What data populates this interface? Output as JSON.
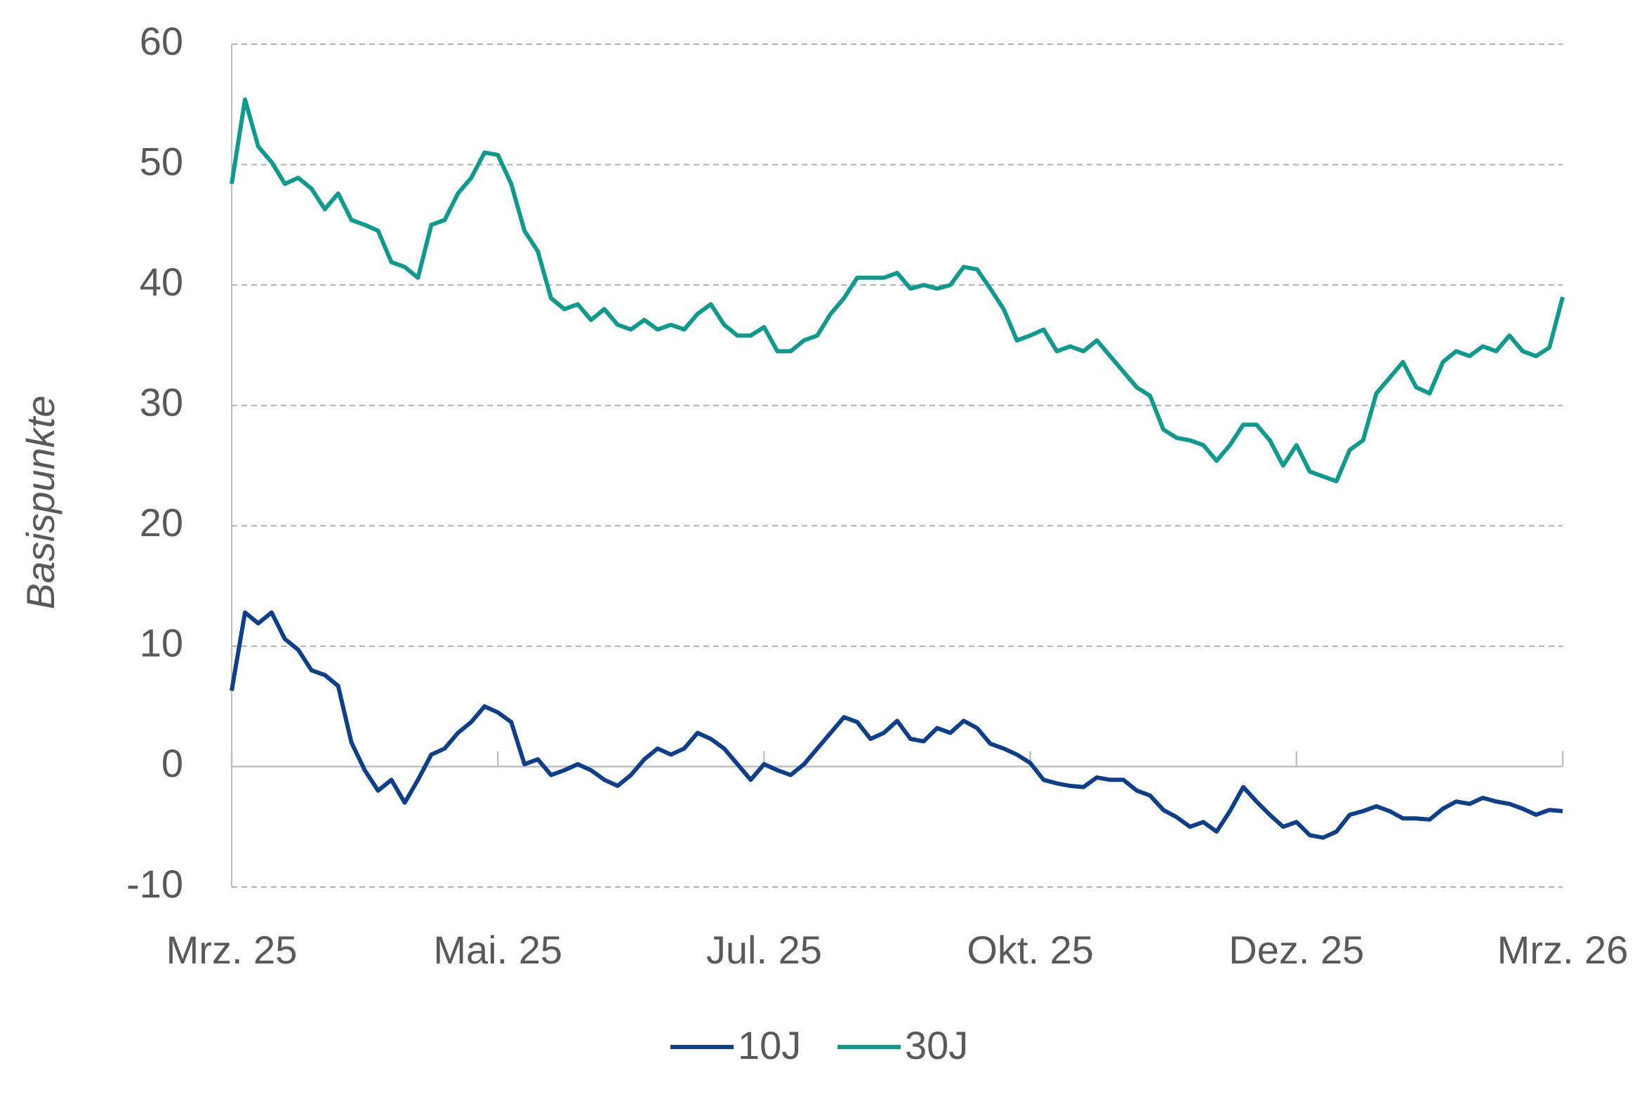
{
  "chart_data": {
    "type": "line",
    "ylabel": "Basispunkte",
    "categories": [
      "Mrz. 25",
      null,
      null,
      null,
      null,
      null,
      null,
      null,
      null,
      null,
      null,
      null,
      null,
      null,
      null,
      null,
      null,
      null,
      null,
      null,
      "Mai. 25",
      null,
      null,
      null,
      null,
      null,
      null,
      null,
      null,
      null,
      null,
      null,
      null,
      null,
      null,
      null,
      null,
      null,
      null,
      null,
      "Jul. 25",
      null,
      null,
      null,
      null,
      null,
      null,
      null,
      null,
      null,
      null,
      null,
      null,
      null,
      null,
      null,
      null,
      null,
      null,
      null,
      "Okt. 25",
      null,
      null,
      null,
      null,
      null,
      null,
      null,
      null,
      null,
      null,
      null,
      null,
      null,
      null,
      null,
      null,
      null,
      null,
      null,
      "Dez. 25",
      null,
      null,
      null,
      null,
      null,
      null,
      null,
      null,
      null,
      null,
      null,
      null,
      null,
      null,
      null,
      null,
      null,
      null,
      null,
      "Mrz. 26"
    ],
    "series": [
      {
        "name": "10J",
        "color": "#0d3f8a",
        "values": [
          6.3,
          12.8,
          11.9,
          12.8,
          10.6,
          9.7,
          8,
          7.6,
          6.7,
          2,
          -0.3,
          -2,
          -1.1,
          -3,
          -1.1,
          1,
          1.5,
          2.8,
          3.7,
          5,
          4.5,
          3.7,
          0.2,
          0.6,
          -0.7,
          -0.3,
          0.2,
          -0.3,
          -1.1,
          -1.6,
          -0.7,
          0.6,
          1.5,
          1,
          1.5,
          2.8,
          2.3,
          1.5,
          0.2,
          -1.1,
          0.2,
          -0.3,
          -0.7,
          0.2,
          1.5,
          2.8,
          4.1,
          3.7,
          2.3,
          2.8,
          3.8,
          2.3,
          2.1,
          3.2,
          2.8,
          3.8,
          3.2,
          1.9,
          1.5,
          1,
          0.3,
          -1.1,
          -1.4,
          -1.6,
          -1.7,
          -0.9,
          -1.1,
          -1.1,
          -2,
          -2.4,
          -3.6,
          -4.2,
          -5,
          -4.6,
          -5.4,
          -3.7,
          -1.7,
          -2.9,
          -4,
          -5,
          -4.6,
          -5.7,
          -5.9,
          -5.4,
          -4,
          -3.7,
          -3.3,
          -3.7,
          -4.3,
          -4.3,
          -4.4,
          -3.5,
          -2.9,
          -3.1,
          -2.6,
          -2.9,
          -3.1,
          -3.5,
          -4,
          -3.6,
          -3.7
        ]
      },
      {
        "name": "30J",
        "color": "#0f9a8e",
        "values": [
          48.4,
          55.4,
          51.5,
          50.2,
          48.4,
          48.9,
          48,
          46.3,
          47.6,
          45.4,
          45,
          44.5,
          41.9,
          41.5,
          40.6,
          45,
          45.4,
          47.6,
          48.9,
          51,
          50.8,
          48.4,
          44.5,
          42.8,
          38.9,
          38,
          38.4,
          37.1,
          38,
          36.7,
          36.3,
          37.1,
          36.3,
          36.7,
          36.3,
          37.6,
          38.4,
          36.7,
          35.8,
          35.8,
          36.5,
          34.5,
          34.5,
          35.4,
          35.8,
          37.6,
          38.9,
          40.6,
          40.6,
          40.6,
          41,
          39.7,
          40,
          39.7,
          40,
          41.5,
          41.3,
          39.7,
          38,
          35.4,
          35.8,
          36.3,
          34.5,
          34.9,
          34.5,
          35.4,
          34.1,
          32.8,
          31.5,
          30.8,
          28,
          27.3,
          27.1,
          26.7,
          25.4,
          26.7,
          28.4,
          28.4,
          27.1,
          25,
          26.7,
          24.5,
          24.1,
          23.7,
          26.3,
          27.1,
          31,
          32.3,
          33.6,
          31.5,
          31,
          33.6,
          34.5,
          34.1,
          34.9,
          34.5,
          35.8,
          34.5,
          34.1,
          34.8,
          39
        ]
      }
    ],
    "ylim": [
      -10,
      60
    ],
    "yticks": [
      -10,
      0,
      10,
      20,
      30,
      40,
      50,
      60
    ],
    "grid": true
  }
}
